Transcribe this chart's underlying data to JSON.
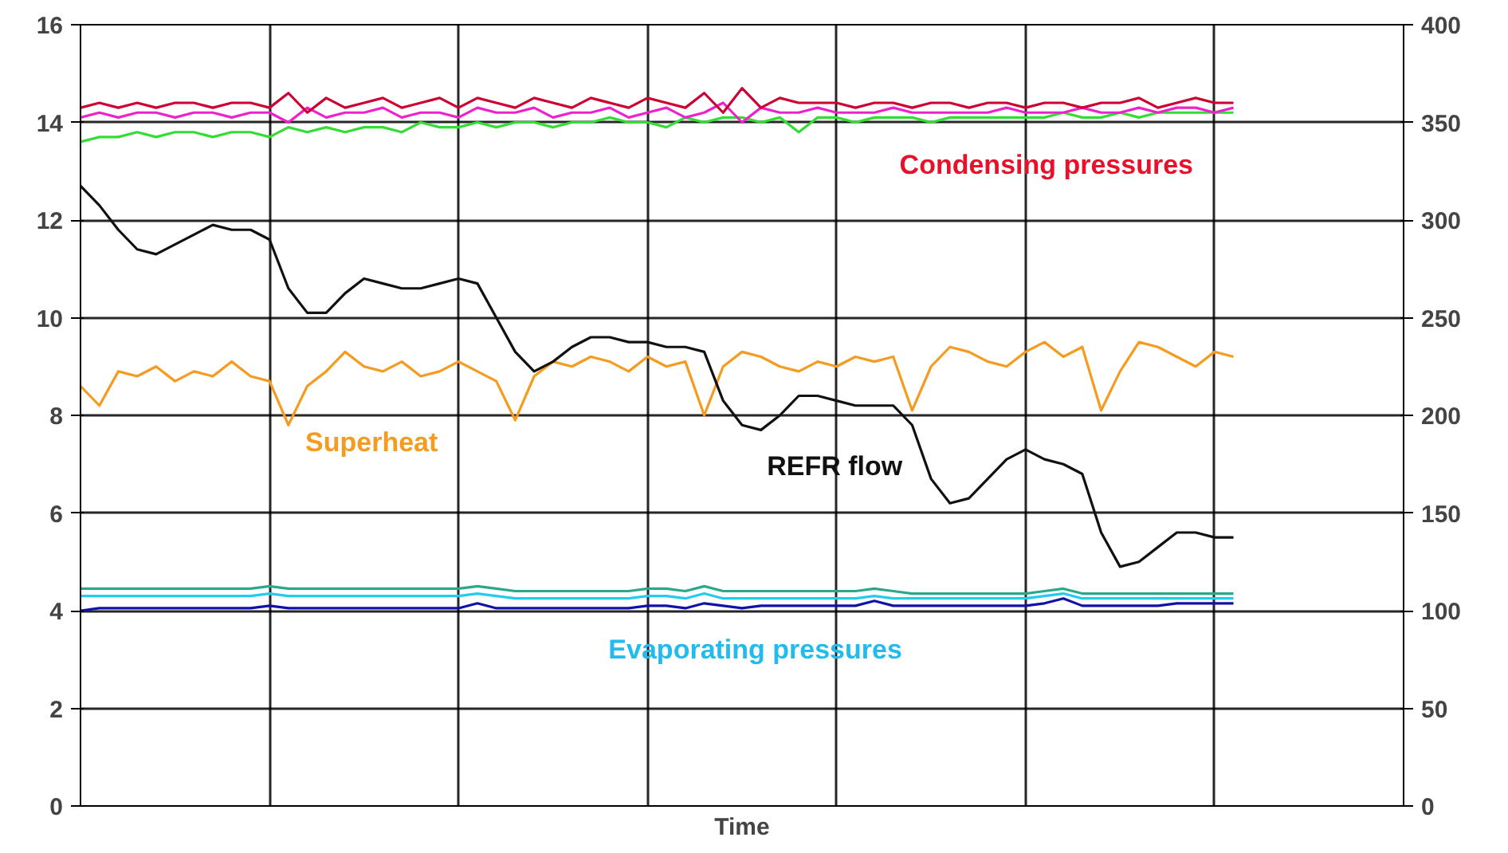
{
  "chart_data": {
    "type": "line",
    "xlabel": "Time",
    "categories": [
      null,
      null,
      null,
      null,
      null,
      null,
      null,
      null,
      null,
      null,
      null,
      null,
      null,
      null,
      null,
      null,
      null,
      null,
      null,
      null,
      null,
      null,
      null,
      null,
      null,
      null,
      null,
      null,
      null,
      null,
      null,
      null,
      null,
      null,
      null,
      null,
      null,
      null,
      null,
      null,
      null,
      null,
      null,
      null,
      null,
      null,
      null,
      null,
      null,
      null,
      null,
      null,
      null,
      null,
      null,
      null,
      null,
      null,
      null,
      null,
      null,
      null,
      null,
      null,
      null,
      null,
      null,
      null,
      null,
      null,
      null
    ],
    "ylim": [
      0,
      16
    ],
    "yticks": [
      0,
      2,
      4,
      6,
      8,
      10,
      12,
      14,
      16
    ],
    "y2lim": [
      0,
      400
    ],
    "y2ticks": [
      0,
      50,
      100,
      150,
      200,
      250,
      300,
      350,
      400
    ],
    "grid": true,
    "marker": "none",
    "line_style": "solid",
    "series": [
      {
        "color": "#33dd33",
        "values": [
          13.6,
          13.7,
          13.7,
          13.8,
          13.7,
          13.8,
          13.8,
          13.7,
          13.8,
          13.8,
          13.7,
          13.9,
          13.8,
          13.9,
          13.8,
          13.9,
          13.9,
          13.8,
          14.0,
          13.9,
          13.9,
          14.0,
          13.9,
          14.0,
          14.0,
          13.9,
          14.0,
          14.0,
          14.1,
          14.0,
          14.0,
          13.9,
          14.1,
          14.0,
          14.1,
          14.1,
          14.0,
          14.1,
          13.8,
          14.1,
          14.1,
          14.0,
          14.1,
          14.1,
          14.1,
          14.0,
          14.1,
          14.1,
          14.1,
          14.1,
          14.1,
          14.1,
          14.2,
          14.1,
          14.1,
          14.2,
          14.1,
          14.2,
          14.2,
          14.2,
          14.2,
          14.2,
          null,
          null,
          null,
          null,
          null,
          null,
          null,
          null,
          null
        ]
      },
      {
        "color": "#ee22cc",
        "values": [
          14.1,
          14.2,
          14.1,
          14.2,
          14.2,
          14.1,
          14.2,
          14.2,
          14.1,
          14.2,
          14.2,
          14.0,
          14.3,
          14.1,
          14.2,
          14.2,
          14.3,
          14.1,
          14.2,
          14.2,
          14.1,
          14.3,
          14.2,
          14.2,
          14.3,
          14.1,
          14.2,
          14.2,
          14.3,
          14.1,
          14.2,
          14.3,
          14.1,
          14.2,
          14.4,
          14.0,
          14.3,
          14.2,
          14.2,
          14.3,
          14.2,
          14.2,
          14.2,
          14.3,
          14.2,
          14.2,
          14.2,
          14.2,
          14.2,
          14.3,
          14.2,
          14.2,
          14.2,
          14.3,
          14.2,
          14.2,
          14.3,
          14.2,
          14.3,
          14.3,
          14.2,
          14.3,
          null,
          null,
          null,
          null,
          null,
          null,
          null,
          null,
          null
        ]
      },
      {
        "color": "#cc0033",
        "values": [
          14.3,
          14.4,
          14.3,
          14.4,
          14.3,
          14.4,
          14.4,
          14.3,
          14.4,
          14.4,
          14.3,
          14.6,
          14.2,
          14.5,
          14.3,
          14.4,
          14.5,
          14.3,
          14.4,
          14.5,
          14.3,
          14.5,
          14.4,
          14.3,
          14.5,
          14.4,
          14.3,
          14.5,
          14.4,
          14.3,
          14.5,
          14.4,
          14.3,
          14.6,
          14.2,
          14.7,
          14.3,
          14.5,
          14.4,
          14.4,
          14.4,
          14.3,
          14.4,
          14.4,
          14.3,
          14.4,
          14.4,
          14.3,
          14.4,
          14.4,
          14.3,
          14.4,
          14.4,
          14.3,
          14.4,
          14.4,
          14.5,
          14.3,
          14.4,
          14.5,
          14.4,
          14.4,
          null,
          null,
          null,
          null,
          null,
          null,
          null,
          null,
          null
        ]
      },
      {
        "color": "#f59b1f",
        "values": [
          8.6,
          8.2,
          8.9,
          8.8,
          9.0,
          8.7,
          8.9,
          8.8,
          9.1,
          8.8,
          8.7,
          7.8,
          8.6,
          8.9,
          9.3,
          9.0,
          8.9,
          9.1,
          8.8,
          8.9,
          9.1,
          8.9,
          8.7,
          7.9,
          8.8,
          9.1,
          9.0,
          9.2,
          9.1,
          8.9,
          9.2,
          9.0,
          9.1,
          8.0,
          9.0,
          9.3,
          9.2,
          9.0,
          8.9,
          9.1,
          9.0,
          9.2,
          9.1,
          9.2,
          8.1,
          9.0,
          9.4,
          9.3,
          9.1,
          9.0,
          9.3,
          9.5,
          9.2,
          9.4,
          8.1,
          8.9,
          9.5,
          9.4,
          9.2,
          9.0,
          9.3,
          9.2,
          null,
          null,
          null,
          null,
          null,
          null,
          null,
          null,
          null
        ]
      },
      {
        "color": "#111111",
        "values": [
          12.7,
          12.3,
          11.8,
          11.4,
          11.3,
          11.5,
          11.7,
          11.9,
          11.8,
          11.8,
          11.6,
          10.6,
          10.1,
          10.1,
          10.5,
          10.8,
          10.7,
          10.6,
          10.6,
          10.7,
          10.8,
          10.7,
          10.0,
          9.3,
          8.9,
          9.1,
          9.4,
          9.6,
          9.6,
          9.5,
          9.5,
          9.4,
          9.4,
          9.3,
          8.3,
          7.8,
          7.7,
          8.0,
          8.4,
          8.4,
          8.3,
          8.2,
          8.2,
          8.2,
          7.8,
          6.7,
          6.2,
          6.3,
          6.7,
          7.1,
          7.3,
          7.1,
          7.0,
          6.8,
          5.6,
          4.9,
          5.0,
          5.3,
          5.6,
          5.6,
          5.5,
          5.5,
          null,
          null,
          null,
          null,
          null,
          null,
          null,
          null,
          null
        ]
      },
      {
        "color": "#2aa88a",
        "values": [
          4.45,
          4.45,
          4.45,
          4.45,
          4.45,
          4.45,
          4.45,
          4.45,
          4.45,
          4.45,
          4.5,
          4.45,
          4.45,
          4.45,
          4.45,
          4.45,
          4.45,
          4.45,
          4.45,
          4.45,
          4.45,
          4.5,
          4.45,
          4.4,
          4.4,
          4.4,
          4.4,
          4.4,
          4.4,
          4.4,
          4.45,
          4.45,
          4.4,
          4.5,
          4.4,
          4.4,
          4.4,
          4.4,
          4.4,
          4.4,
          4.4,
          4.4,
          4.45,
          4.4,
          4.35,
          4.35,
          4.35,
          4.35,
          4.35,
          4.35,
          4.35,
          4.4,
          4.45,
          4.35,
          4.35,
          4.35,
          4.35,
          4.35,
          4.35,
          4.35,
          4.35,
          4.35,
          null,
          null,
          null,
          null,
          null,
          null,
          null,
          null,
          null
        ]
      },
      {
        "color": "#22ccee",
        "values": [
          4.3,
          4.3,
          4.3,
          4.3,
          4.3,
          4.3,
          4.3,
          4.3,
          4.3,
          4.3,
          4.35,
          4.3,
          4.3,
          4.3,
          4.3,
          4.3,
          4.3,
          4.3,
          4.3,
          4.3,
          4.3,
          4.35,
          4.3,
          4.25,
          4.25,
          4.25,
          4.25,
          4.25,
          4.25,
          4.25,
          4.3,
          4.3,
          4.25,
          4.35,
          4.25,
          4.25,
          4.25,
          4.25,
          4.25,
          4.25,
          4.25,
          4.25,
          4.3,
          4.25,
          4.25,
          4.25,
          4.25,
          4.25,
          4.25,
          4.25,
          4.25,
          4.3,
          4.35,
          4.25,
          4.25,
          4.25,
          4.25,
          4.25,
          4.25,
          4.25,
          4.25,
          4.25,
          null,
          null,
          null,
          null,
          null,
          null,
          null,
          null,
          null
        ]
      },
      {
        "color": "#1111aa",
        "values": [
          4.0,
          4.05,
          4.05,
          4.05,
          4.05,
          4.05,
          4.05,
          4.05,
          4.05,
          4.05,
          4.1,
          4.05,
          4.05,
          4.05,
          4.05,
          4.05,
          4.05,
          4.05,
          4.05,
          4.05,
          4.05,
          4.15,
          4.05,
          4.05,
          4.05,
          4.05,
          4.05,
          4.05,
          4.05,
          4.05,
          4.1,
          4.1,
          4.05,
          4.15,
          4.1,
          4.05,
          4.1,
          4.1,
          4.1,
          4.1,
          4.1,
          4.1,
          4.2,
          4.1,
          4.1,
          4.1,
          4.1,
          4.1,
          4.1,
          4.1,
          4.1,
          4.15,
          4.25,
          4.1,
          4.1,
          4.1,
          4.1,
          4.1,
          4.15,
          4.15,
          4.15,
          4.15,
          null,
          null,
          null,
          null,
          null,
          null,
          null,
          null,
          null
        ]
      }
    ],
    "annotations": [
      "Condensing pressures",
      "Superheat",
      "REFR flow",
      "Evaporating pressures"
    ]
  }
}
